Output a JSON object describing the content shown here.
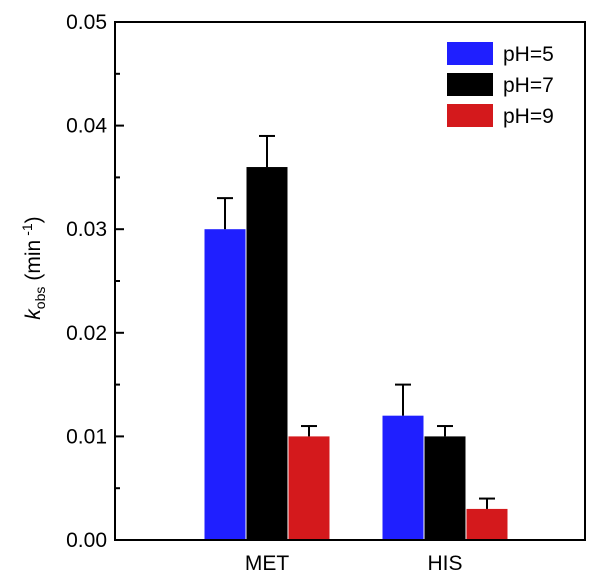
{
  "chart_data": {
    "type": "bar",
    "categories": [
      "MET",
      "HIS"
    ],
    "series": [
      {
        "name": "pH=5",
        "color": "#1f1fff",
        "values": [
          0.03,
          0.012
        ],
        "errors": [
          0.003,
          0.003
        ]
      },
      {
        "name": "pH=7",
        "color": "#000000",
        "values": [
          0.036,
          0.01
        ],
        "errors": [
          0.003,
          0.001
        ]
      },
      {
        "name": "pH=9",
        "color": "#d4191c",
        "values": [
          0.01,
          0.003
        ],
        "errors": [
          0.001,
          0.001
        ]
      }
    ],
    "ylim": [
      0,
      0.05
    ],
    "yticks": [
      "0.00",
      "0.01",
      "0.02",
      "0.03",
      "0.04",
      "0.05"
    ],
    "ylabel": {
      "main": "k",
      "sub": "obs",
      "unit": "(min",
      "sup": "-1",
      "close": ")"
    },
    "xlabel": "",
    "legend_position": "top-right"
  }
}
